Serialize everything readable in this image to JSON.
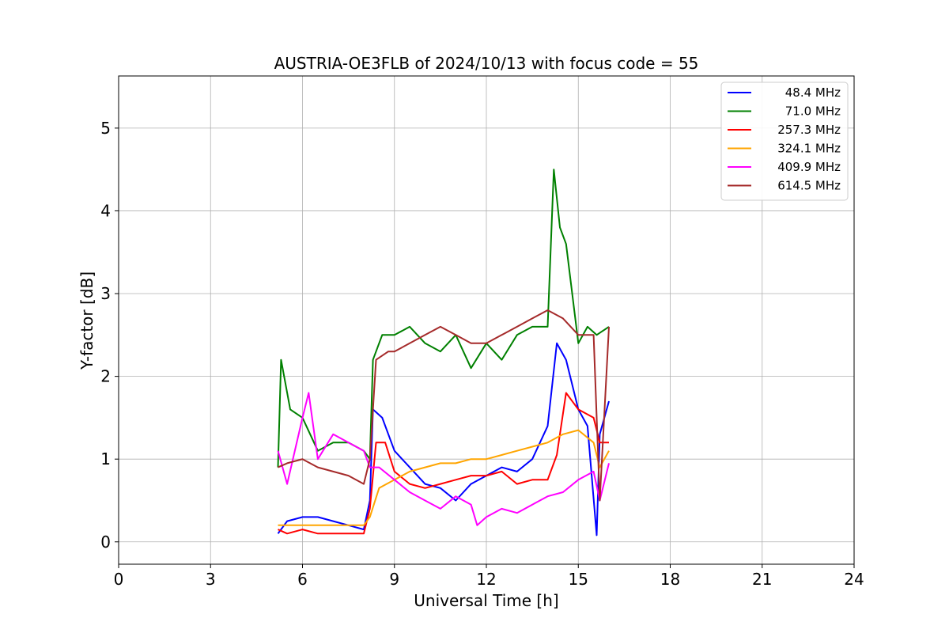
{
  "chart_data": {
    "type": "line",
    "title": "AUSTRIA-OE3FLB of 2024/10/13 with focus code = 55",
    "xlabel": "Universal Time [h]",
    "ylabel": "Y-factor [dB]",
    "xlim": [
      0,
      24
    ],
    "ylim": [
      -0.27,
      5.63
    ],
    "xticks": [
      0,
      3,
      6,
      9,
      12,
      15,
      18,
      21,
      24
    ],
    "yticks": [
      0,
      1,
      2,
      3,
      4,
      5
    ],
    "grid": true,
    "legend_position": "top-right",
    "series": [
      {
        "name": "48.4 MHz",
        "color": "#0000ff",
        "x": [
          5.2,
          5.5,
          6.0,
          6.5,
          7.0,
          7.5,
          8.0,
          8.2,
          8.3,
          8.6,
          9.0,
          9.5,
          10.0,
          10.5,
          11.0,
          11.5,
          12.0,
          12.5,
          13.0,
          13.5,
          14.0,
          14.3,
          14.6,
          15.0,
          15.3,
          15.6,
          15.7,
          16.0
        ],
        "values": [
          0.1,
          0.25,
          0.3,
          0.3,
          0.25,
          0.2,
          0.15,
          0.5,
          1.6,
          1.5,
          1.1,
          0.9,
          0.7,
          0.65,
          0.5,
          0.7,
          0.8,
          0.9,
          0.85,
          1.0,
          1.4,
          2.4,
          2.2,
          1.6,
          1.4,
          0.08,
          1.3,
          1.7
        ]
      },
      {
        "name": "71.0 MHz",
        "color": "#008000",
        "x": [
          5.2,
          5.3,
          5.6,
          6.0,
          6.5,
          7.0,
          7.5,
          8.0,
          8.2,
          8.3,
          8.6,
          9.0,
          9.5,
          10.0,
          10.5,
          11.0,
          11.5,
          12.0,
          12.5,
          13.0,
          13.5,
          14.0,
          14.2,
          14.4,
          14.6,
          15.0,
          15.3,
          15.6,
          16.0
        ],
        "values": [
          0.9,
          2.2,
          1.6,
          1.5,
          1.1,
          1.2,
          1.2,
          1.1,
          1.0,
          2.2,
          2.5,
          2.5,
          2.6,
          2.4,
          2.3,
          2.5,
          2.1,
          2.4,
          2.2,
          2.5,
          2.6,
          2.6,
          4.5,
          3.8,
          3.6,
          2.4,
          2.6,
          2.5,
          2.6
        ]
      },
      {
        "name": "257.3 MHz",
        "color": "#ff0000",
        "x": [
          5.2,
          5.5,
          6.0,
          6.5,
          7.0,
          7.5,
          8.0,
          8.2,
          8.4,
          8.7,
          9.0,
          9.5,
          10.0,
          10.5,
          11.0,
          11.5,
          12.0,
          12.5,
          13.0,
          13.5,
          14.0,
          14.3,
          14.6,
          15.0,
          15.5,
          15.7,
          16.0
        ],
        "values": [
          0.15,
          0.1,
          0.15,
          0.1,
          0.1,
          0.1,
          0.1,
          0.4,
          1.2,
          1.2,
          0.85,
          0.7,
          0.65,
          0.7,
          0.75,
          0.8,
          0.8,
          0.85,
          0.7,
          0.75,
          0.75,
          1.05,
          1.8,
          1.6,
          1.5,
          1.2,
          1.2
        ]
      },
      {
        "name": "324.1 MHz",
        "color": "#ffa500",
        "x": [
          5.2,
          5.5,
          6.0,
          6.5,
          7.0,
          7.5,
          8.0,
          8.2,
          8.5,
          9.0,
          9.5,
          10.0,
          10.5,
          11.0,
          11.5,
          12.0,
          12.5,
          13.0,
          13.5,
          14.0,
          14.5,
          15.0,
          15.5,
          15.7,
          16.0
        ],
        "values": [
          0.2,
          0.2,
          0.2,
          0.2,
          0.2,
          0.2,
          0.2,
          0.3,
          0.65,
          0.75,
          0.85,
          0.9,
          0.95,
          0.95,
          1.0,
          1.0,
          1.05,
          1.1,
          1.15,
          1.2,
          1.3,
          1.35,
          1.2,
          0.9,
          1.1
        ]
      },
      {
        "name": "409.9 MHz",
        "color": "#ff00ff",
        "x": [
          5.2,
          5.5,
          6.0,
          6.2,
          6.5,
          7.0,
          7.5,
          8.0,
          8.2,
          8.5,
          9.0,
          9.5,
          10.0,
          10.5,
          11.0,
          11.5,
          11.7,
          12.0,
          12.5,
          13.0,
          13.5,
          14.0,
          14.5,
          15.0,
          15.5,
          15.7,
          16.0
        ],
        "values": [
          1.1,
          0.7,
          1.5,
          1.8,
          1.0,
          1.3,
          1.2,
          1.1,
          0.9,
          0.9,
          0.75,
          0.6,
          0.5,
          0.4,
          0.55,
          0.45,
          0.2,
          0.3,
          0.4,
          0.35,
          0.45,
          0.55,
          0.6,
          0.75,
          0.85,
          0.5,
          0.95
        ]
      },
      {
        "name": "614.5 MHz",
        "color": "#a52a2a",
        "x": [
          5.2,
          5.5,
          6.0,
          6.5,
          7.0,
          7.5,
          8.0,
          8.2,
          8.4,
          8.8,
          9.0,
          9.5,
          10.0,
          10.5,
          11.0,
          11.5,
          12.0,
          12.5,
          13.0,
          13.5,
          14.0,
          14.5,
          15.0,
          15.5,
          15.7,
          16.0
        ],
        "values": [
          0.9,
          0.95,
          1.0,
          0.9,
          0.85,
          0.8,
          0.7,
          1.0,
          2.2,
          2.3,
          2.3,
          2.4,
          2.5,
          2.6,
          2.5,
          2.4,
          2.4,
          2.5,
          2.6,
          2.7,
          2.8,
          2.7,
          2.5,
          2.5,
          0.5,
          2.6
        ]
      }
    ]
  }
}
